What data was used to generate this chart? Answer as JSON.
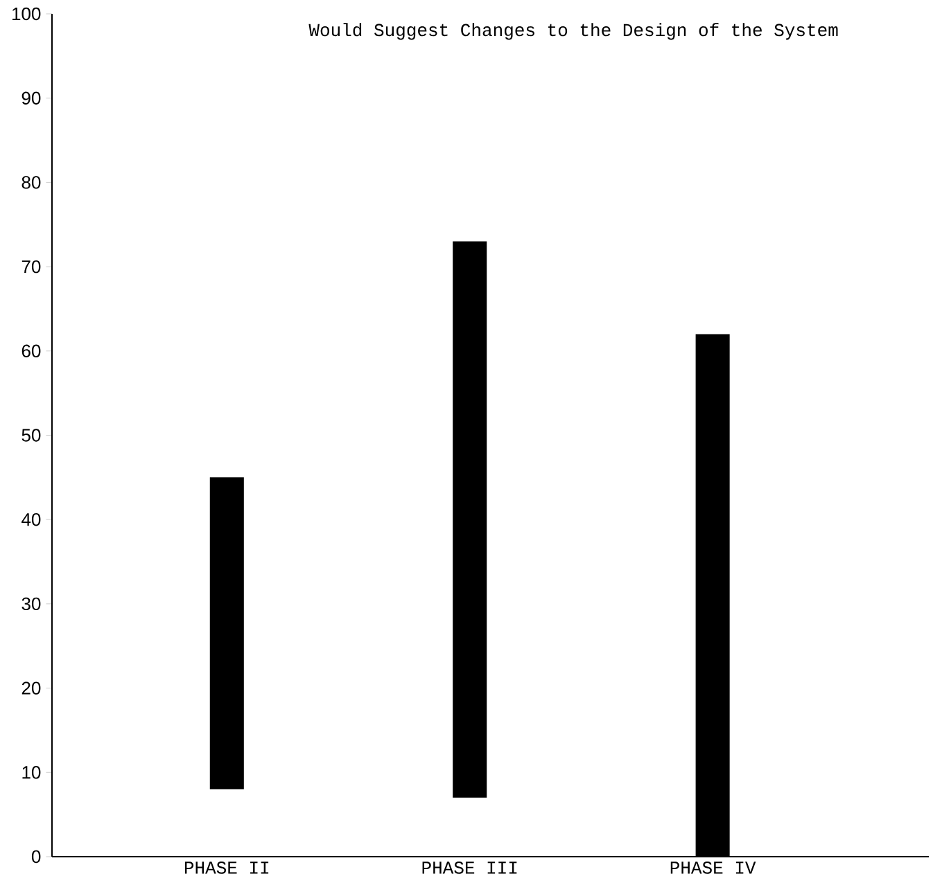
{
  "chart_data": {
    "type": "bar",
    "title": "Would Suggest Changes to the Design of the System",
    "categories": [
      "PHASE II",
      "PHASE III",
      "PHASE IV"
    ],
    "base": [
      8,
      7,
      0
    ],
    "values": [
      37,
      66,
      62
    ],
    "color": "#000000",
    "ylim": [
      0,
      100
    ],
    "yticks": [
      0,
      10,
      20,
      30,
      40,
      50,
      60,
      70,
      80,
      90,
      100
    ],
    "grid": false
  }
}
